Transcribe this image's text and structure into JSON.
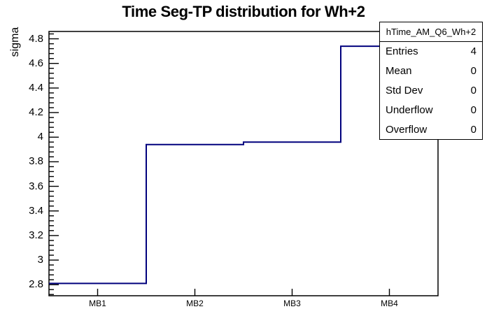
{
  "title": "Time Seg-TP distribution for Wh+2",
  "stats_box": {
    "header": "hTime_AM_Q6_Wh+2",
    "rows": [
      {
        "label": "Entries",
        "value": "4"
      },
      {
        "label": "Mean",
        "value": "0"
      },
      {
        "label": "Std Dev",
        "value": "0"
      },
      {
        "label": "Underflow",
        "value": "0"
      },
      {
        "label": "Overflow",
        "value": "0"
      }
    ]
  },
  "chart_data": {
    "type": "bar",
    "subtype": "step-histogram-outline",
    "title": "Time Seg-TP distribution for Wh+2",
    "categories": [
      "MB1",
      "MB2",
      "MB3",
      "MB4"
    ],
    "values": [
      2.81,
      3.94,
      3.96,
      4.74
    ],
    "xlabel": "",
    "ylabel": "sigma",
    "ylim": [
      2.71,
      4.86
    ],
    "yticks": [
      2.8,
      3.0,
      3.2,
      3.4,
      3.6,
      3.8,
      4.0,
      4.2,
      4.4,
      4.6,
      4.8
    ],
    "ytick_labels": [
      "2.8",
      "3",
      "3.2",
      "3.4",
      "3.6",
      "3.8",
      "4",
      "4.2",
      "4.4",
      "4.6",
      "4.8"
    ],
    "minor_tick_step": 0.04,
    "grid": false,
    "legend": "none",
    "line_color": "#00007d",
    "frame_color": "#000000",
    "background_color": "#ffffff"
  }
}
